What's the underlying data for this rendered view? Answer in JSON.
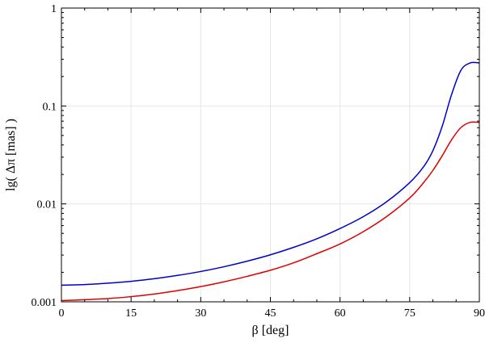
{
  "chart_data": {
    "type": "line",
    "title": "",
    "xlabel": "β [deg]",
    "ylabel": "lg( Δπ [mas] )",
    "xlim": [
      0,
      90
    ],
    "ylim": [
      0.001,
      1
    ],
    "yscale": "log",
    "grid": true,
    "legend": "none",
    "x_ticks": [
      0,
      15,
      30,
      45,
      60,
      75,
      90
    ],
    "x_tick_labels": [
      "0",
      "15",
      "30",
      "45",
      "60",
      "75",
      "90"
    ],
    "y_ticks": [
      0.001,
      0.01,
      0.1,
      1
    ],
    "y_tick_labels": [
      "0.001",
      "0.01",
      "0.1",
      "1"
    ],
    "x": [
      0,
      5,
      10,
      15,
      20,
      25,
      30,
      35,
      40,
      45,
      50,
      55,
      60,
      65,
      70,
      75,
      78,
      80,
      82,
      84,
      86,
      88,
      90
    ],
    "series": [
      {
        "color": "#0000cc",
        "values": [
          0.00148,
          0.0015,
          0.00155,
          0.00162,
          0.00172,
          0.00186,
          0.00204,
          0.00228,
          0.0026,
          0.00302,
          0.0036,
          0.0044,
          0.0056,
          0.0074,
          0.0105,
          0.0165,
          0.024,
          0.035,
          0.062,
          0.13,
          0.23,
          0.275,
          0.275
        ]
      },
      {
        "color": "#dd0000",
        "values": [
          0.00103,
          0.00105,
          0.00108,
          0.00113,
          0.0012,
          0.0013,
          0.00143,
          0.0016,
          0.00182,
          0.0021,
          0.0025,
          0.0031,
          0.0039,
          0.0052,
          0.0074,
          0.0115,
          0.0165,
          0.022,
          0.031,
          0.045,
          0.06,
          0.068,
          0.068
        ]
      }
    ]
  }
}
